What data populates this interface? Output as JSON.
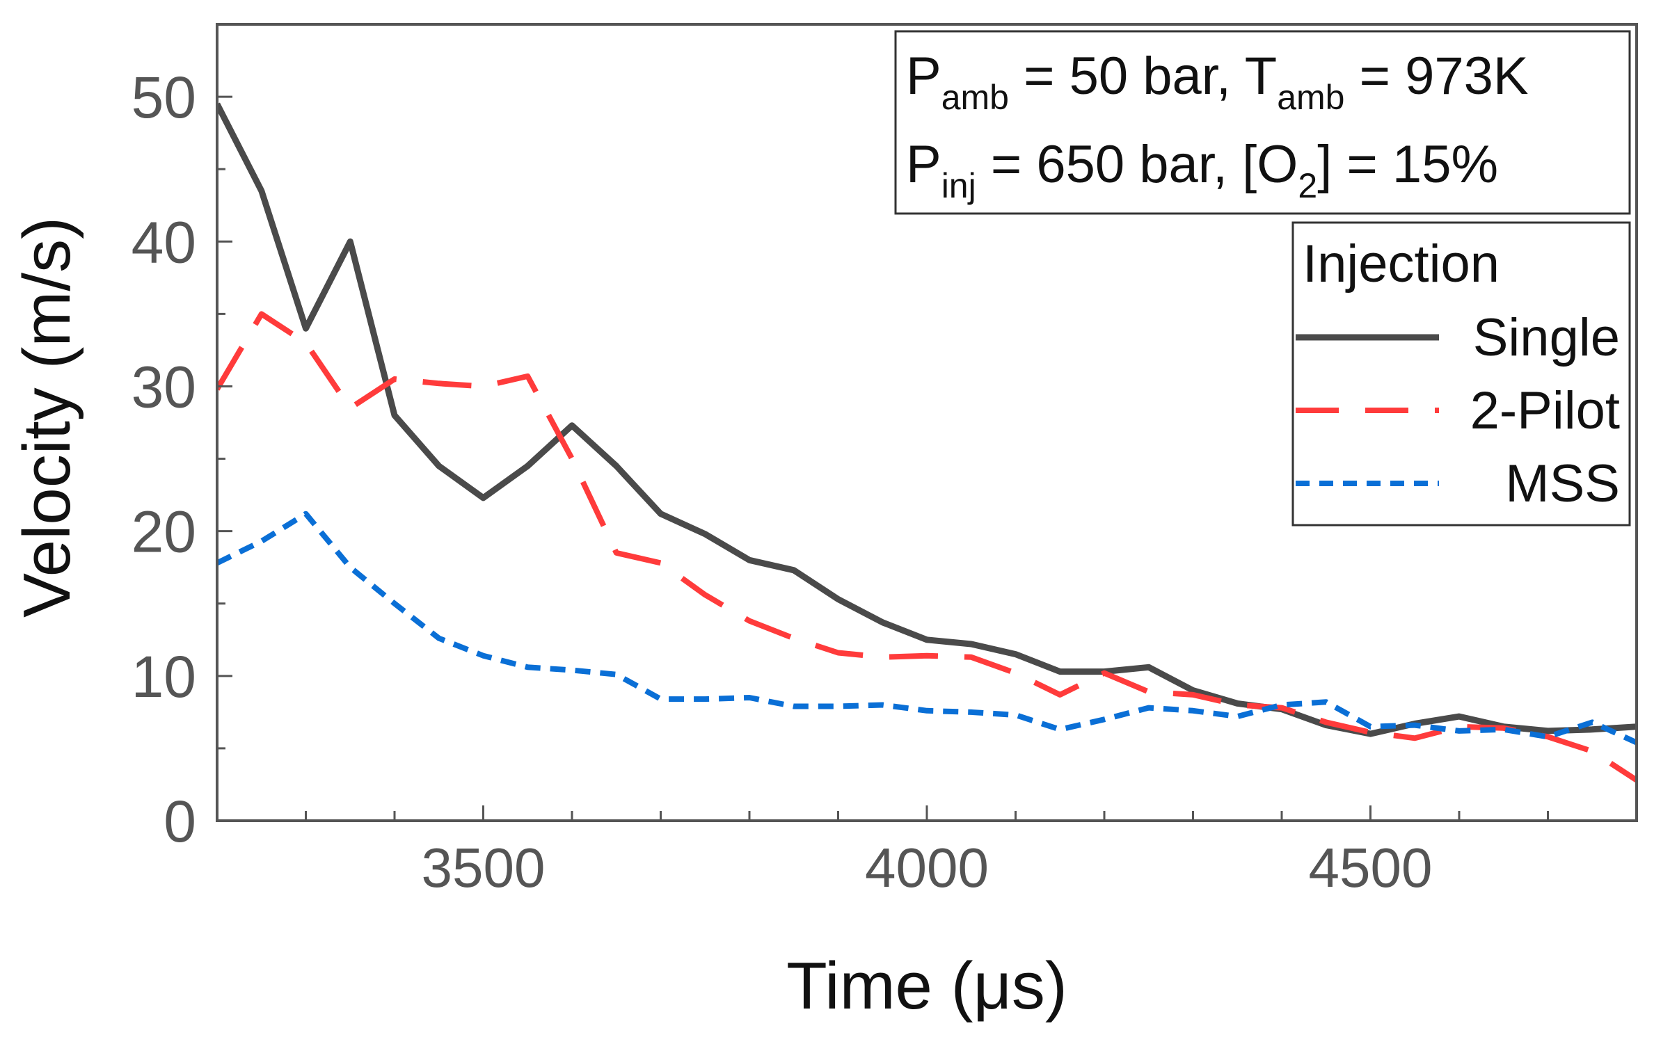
{
  "chart_data": {
    "type": "line",
    "xlabel": "Time (μs)",
    "ylabel": "Velocity (m/s)",
    "xlim": [
      3200,
      4800
    ],
    "ylim": [
      0,
      55
    ],
    "xticks": [
      3500,
      4000,
      4500
    ],
    "yticks": [
      0,
      10,
      20,
      30,
      40,
      50
    ],
    "grid": false,
    "conditions": {
      "line1": {
        "p_sym": "P",
        "amb_sub": "amb",
        "eq_50": " = 50 bar, ",
        "t_sym": "T",
        "amb_sub2": "amb",
        "eq_973": " = 973K"
      },
      "line2": {
        "p_sym": "P",
        "inj_sub": "inj",
        "eq_650": " = 650 bar, [O",
        "o2_sub": "2",
        "eq_15": "] = 15%"
      }
    },
    "legend": {
      "title": "Injection",
      "placement": "right"
    },
    "series": [
      {
        "name": "Single",
        "color": "#4a4a4a",
        "style": "solid",
        "x": [
          3200,
          3250,
          3300,
          3350,
          3400,
          3450,
          3500,
          3550,
          3600,
          3650,
          3700,
          3750,
          3800,
          3850,
          3900,
          3950,
          4000,
          4050,
          4100,
          4150,
          4200,
          4250,
          4300,
          4350,
          4400,
          4450,
          4500,
          4550,
          4600,
          4650,
          4700,
          4750,
          4800
        ],
        "y": [
          49.5,
          43.5,
          34,
          40,
          28,
          24.5,
          22.3,
          24.5,
          27.3,
          24.5,
          21.2,
          19.8,
          18,
          17.3,
          15.3,
          13.7,
          12.5,
          12.2,
          11.5,
          10.3,
          10.3,
          10.6,
          9,
          8.1,
          7.7,
          6.6,
          6,
          6.7,
          7.2,
          6.5,
          6.2,
          6.3,
          6.5
        ]
      },
      {
        "name": "2-Pilot",
        "color": "#ff3b3b",
        "style": "dashed",
        "x": [
          3200,
          3250,
          3300,
          3350,
          3400,
          3450,
          3500,
          3550,
          3600,
          3650,
          3700,
          3750,
          3800,
          3850,
          3900,
          3950,
          4000,
          4050,
          4100,
          4150,
          4200,
          4250,
          4300,
          4350,
          4400,
          4450,
          4500,
          4550,
          4600,
          4650,
          4700,
          4750,
          4800
        ],
        "y": [
          29.8,
          35,
          33,
          28.5,
          30.5,
          30.2,
          30,
          30.7,
          25,
          18.5,
          17.8,
          15.6,
          13.8,
          12.6,
          11.6,
          11.3,
          11.4,
          11.3,
          10.2,
          8.7,
          10.2,
          8.9,
          8.7,
          8,
          7.8,
          6.8,
          6.1,
          5.7,
          6.5,
          6.4,
          5.8,
          4.8,
          2.8
        ]
      },
      {
        "name": "MSS",
        "color": "#0a6fd6",
        "style": "dotted",
        "x": [
          3200,
          3250,
          3300,
          3350,
          3400,
          3450,
          3500,
          3550,
          3600,
          3650,
          3700,
          3750,
          3800,
          3850,
          3900,
          3950,
          4000,
          4050,
          4100,
          4150,
          4200,
          4250,
          4300,
          4350,
          4400,
          4450,
          4500,
          4550,
          4600,
          4650,
          4700,
          4750,
          4800
        ],
        "y": [
          17.8,
          19.3,
          21.2,
          17.5,
          15,
          12.6,
          11.4,
          10.6,
          10.4,
          10.1,
          8.4,
          8.4,
          8.5,
          7.9,
          7.9,
          8,
          7.6,
          7.5,
          7.3,
          6.3,
          7,
          7.8,
          7.6,
          7.2,
          8,
          8.2,
          6.5,
          6.6,
          6.2,
          6.3,
          5.8,
          6.8,
          5.4
        ]
      }
    ]
  }
}
